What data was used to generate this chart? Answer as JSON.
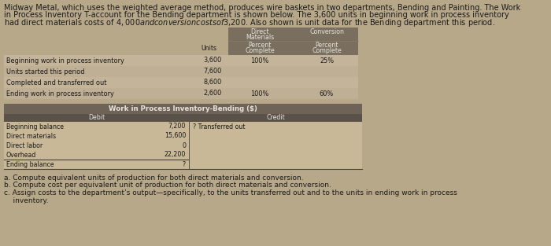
{
  "intro_text_lines": [
    "Midway Metal, which uses the weighted average method, produces wire baskets in two departments, Bending and Painting. The Work",
    "in Process Inventory T-account for the Bending department is shown below. The 3,600 units in beginning work in process inventory",
    "had direct materials costs of $4,000 and conversion costs of $3,200. Also shown is unit data for the Bending department this period."
  ],
  "unit_table_rows": [
    {
      "label": "Beginning work in process inventory",
      "units": "3,600",
      "dm_pct": "100%",
      "conv_pct": "25%"
    },
    {
      "label": "Units started this period",
      "units": "7,600",
      "dm_pct": "",
      "conv_pct": ""
    },
    {
      "label": "Completed and transferred out",
      "units": "8,600",
      "dm_pct": "",
      "conv_pct": ""
    },
    {
      "label": "Ending work in process inventory",
      "units": "2,600",
      "dm_pct": "100%",
      "conv_pct": "60%"
    }
  ],
  "t_title": "Work in Process Inventory-Bending ($)",
  "t_debit_label": "Debit",
  "t_credit_label": "Credit",
  "t_debit_rows": [
    {
      "label": "Beginning balance",
      "value": "7,200"
    },
    {
      "label": "Direct materials",
      "value": "15,600"
    },
    {
      "label": "Direct labor",
      "value": "0"
    },
    {
      "label": "Overhead",
      "value": "22,200"
    }
  ],
  "t_ending_label": "Ending balance",
  "t_ending_value": "?",
  "t_credit_text": "? Transferred out",
  "questions": [
    "a. Compute equivalent units of production for both direct materials and conversion.",
    "b. Compute cost per equivalent unit of production for both direct materials and conversion.",
    "c. Assign costs to the department’s output—specifically, to the units transferred out and to the units in ending work in process",
    "    inventory."
  ],
  "bg_color": "#b8a88a",
  "table_header_bg": "#7a6e5f",
  "table_row_bg1": "#c4b49a",
  "table_row_bg2": "#bfaf95",
  "t_header_bg": "#6e6356",
  "t_sub_header_bg": "#5a5148",
  "t_body_bg": "#c8b898",
  "text_dark": "#1a1a1a",
  "text_light": "#e8e4de",
  "intro_fontsize": 7.0,
  "body_fontsize": 6.2,
  "q_fontsize": 6.5
}
